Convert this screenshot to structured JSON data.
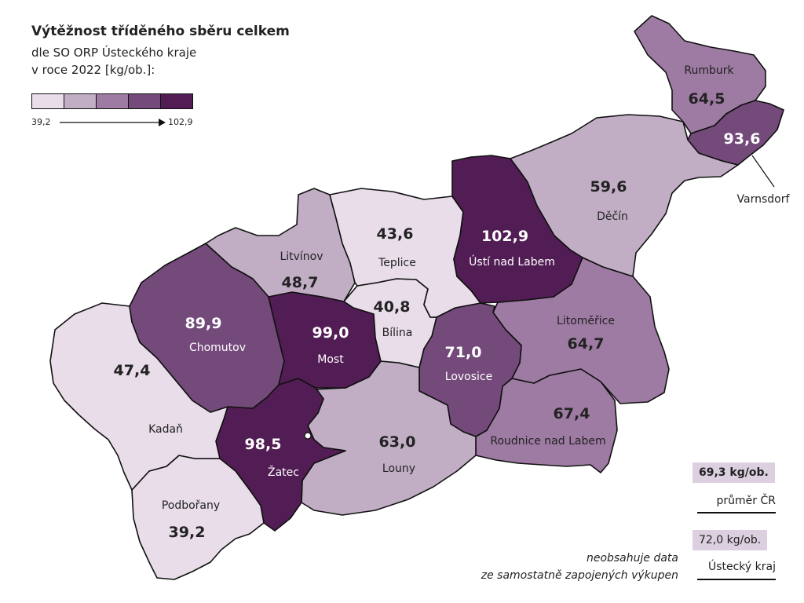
{
  "title": "Výtěžnost tříděného sběru celkem",
  "subtitle_lines": [
    "dle SO ORP Ústeckého kraje",
    "v roce 2022 [kg/ob.]:"
  ],
  "legend": {
    "min": "39,2",
    "max": "102,9",
    "colors": [
      "#e8dde9",
      "#c1aec5",
      "#9e7ba3",
      "#744a7b",
      "#521d55"
    ]
  },
  "regions": [
    {
      "id": "rumburk",
      "name": "Rumburk",
      "value": "64,5",
      "color": "#9e7ba3"
    },
    {
      "id": "varnsdorf",
      "name": "Varnsdorf",
      "value": "93,6",
      "color": "#744a7b"
    },
    {
      "id": "decin",
      "name": "Děčín",
      "value": "59,6",
      "color": "#c1aec5"
    },
    {
      "id": "usti",
      "name": "Ústí nad Labem",
      "value": "102,9",
      "color": "#521d55"
    },
    {
      "id": "teplice",
      "name": "Teplice",
      "value": "43,6",
      "color": "#e8dde9"
    },
    {
      "id": "litvinov",
      "name": "Litvínov",
      "value": "48,7",
      "color": "#c1aec5"
    },
    {
      "id": "bilina",
      "name": "Bílina",
      "value": "40,8",
      "color": "#e8dde9"
    },
    {
      "id": "most",
      "name": "Most",
      "value": "99,0",
      "color": "#521d55"
    },
    {
      "id": "chomutov",
      "name": "Chomutov",
      "value": "89,9",
      "color": "#744a7b"
    },
    {
      "id": "kadan",
      "name": "Kadaň",
      "value": "47,4",
      "color": "#e8dde9"
    },
    {
      "id": "zatec",
      "name": "Žatec",
      "value": "98,5",
      "color": "#521d55"
    },
    {
      "id": "podborany",
      "name": "Podbořany",
      "value": "39,2",
      "color": "#e8dde9"
    },
    {
      "id": "louny",
      "name": "Louny",
      "value": "63,0",
      "color": "#c1aec5"
    },
    {
      "id": "lovosice",
      "name": "Lovosice",
      "value": "71,0",
      "color": "#744a7b"
    },
    {
      "id": "litomerice",
      "name": "Litoměřice",
      "value": "64,7",
      "color": "#9e7ba3"
    },
    {
      "id": "roudnice",
      "name": "Roudnice nad Labem",
      "value": "67,4",
      "color": "#9e7ba3"
    }
  ],
  "averages": {
    "cr": {
      "value": "69,3 kg/ob.",
      "label": "průměr ČR"
    },
    "kraj": {
      "value": "72,0 kg/ob.",
      "label": "Ústecký kraj"
    }
  },
  "note_lines": [
    "neobsahuje data",
    "ze samostatně zapojených výkupen"
  ]
}
